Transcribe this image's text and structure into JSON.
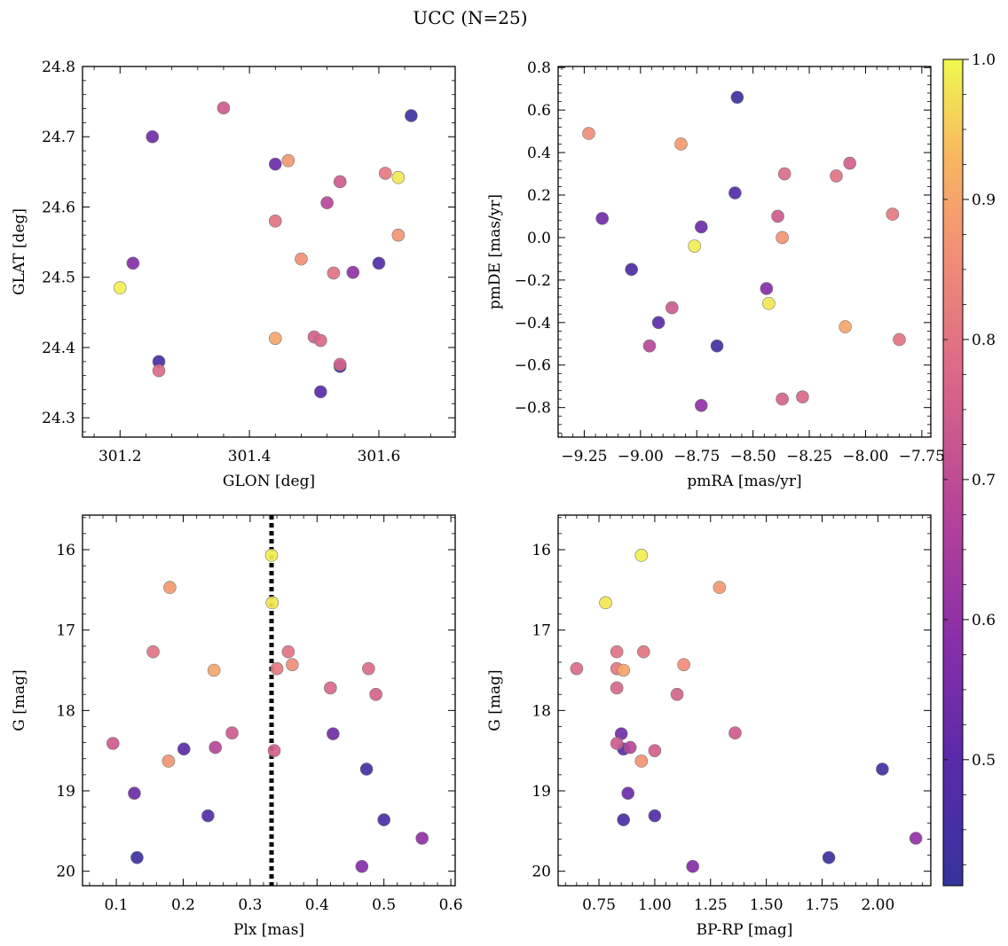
{
  "chart_data": {
    "type": "scatter",
    "title": "UCC (N=25)",
    "colorbar": {
      "colormap": "plasma",
      "range": [
        0.41,
        1.0
      ],
      "ticks": [
        "0.5",
        "0.6",
        "0.7",
        "0.8",
        "0.9",
        "1.0"
      ],
      "tick_values": [
        0.5,
        0.6,
        0.7,
        0.8,
        0.9,
        1.0
      ]
    },
    "stars": [
      {
        "glon": 301.2,
        "glat": 24.485,
        "pmra": -8.76,
        "pmde": -0.04,
        "plx": 0.332,
        "g": 16.07,
        "bprp": 0.94,
        "c": 0.99
      },
      {
        "glon": 301.63,
        "glat": 24.642,
        "pmra": -8.43,
        "pmde": -0.31,
        "plx": 0.333,
        "g": 16.66,
        "bprp": 0.78,
        "c": 0.98
      },
      {
        "glon": 301.46,
        "glat": 24.666,
        "pmra": -8.82,
        "pmde": 0.44,
        "plx": 0.18,
        "g": 16.47,
        "bprp": 1.29,
        "c": 0.88
      },
      {
        "glon": 301.44,
        "glat": 24.413,
        "pmra": -8.09,
        "pmde": -0.42,
        "plx": 0.246,
        "g": 17.5,
        "bprp": 0.86,
        "c": 0.9
      },
      {
        "glon": 301.48,
        "glat": 24.526,
        "pmra": -9.23,
        "pmde": 0.49,
        "plx": 0.363,
        "g": 17.43,
        "bprp": 1.13,
        "c": 0.86
      },
      {
        "glon": 301.63,
        "glat": 24.56,
        "pmra": -8.37,
        "pmde": 0.0,
        "plx": 0.178,
        "g": 18.63,
        "bprp": 0.94,
        "c": 0.87
      },
      {
        "glon": 301.61,
        "glat": 24.648,
        "pmra": -7.88,
        "pmde": 0.11,
        "plx": 0.34,
        "g": 17.48,
        "bprp": 0.83,
        "c": 0.81
      },
      {
        "glon": 301.53,
        "glat": 24.506,
        "pmra": -8.13,
        "pmde": 0.29,
        "plx": 0.357,
        "g": 17.27,
        "bprp": 0.95,
        "c": 0.8
      },
      {
        "glon": 301.44,
        "glat": 24.58,
        "pmra": -7.85,
        "pmde": -0.48,
        "plx": 0.155,
        "g": 17.27,
        "bprp": 0.83,
        "c": 0.8
      },
      {
        "glon": 301.26,
        "glat": 24.367,
        "pmra": -8.36,
        "pmde": 0.3,
        "plx": 0.477,
        "g": 17.48,
        "bprp": 0.65,
        "c": 0.78
      },
      {
        "glon": 301.51,
        "glat": 24.41,
        "pmra": -8.28,
        "pmde": -0.75,
        "plx": 0.42,
        "g": 17.72,
        "bprp": 0.83,
        "c": 0.77
      },
      {
        "glon": 301.54,
        "glat": 24.376,
        "pmra": -8.37,
        "pmde": -0.76,
        "plx": 0.488,
        "g": 17.8,
        "bprp": 1.1,
        "c": 0.76
      },
      {
        "glon": 301.5,
        "glat": 24.415,
        "pmra": -8.07,
        "pmde": 0.35,
        "plx": 0.336,
        "g": 18.5,
        "bprp": 1.0,
        "c": 0.75
      },
      {
        "glon": 301.36,
        "glat": 24.741,
        "pmra": -8.86,
        "pmde": -0.33,
        "plx": 0.095,
        "g": 18.41,
        "bprp": 0.83,
        "c": 0.74
      },
      {
        "glon": 301.54,
        "glat": 24.636,
        "pmra": -8.39,
        "pmde": 0.1,
        "plx": 0.273,
        "g": 18.28,
        "bprp": 1.36,
        "c": 0.74
      },
      {
        "glon": 301.52,
        "glat": 24.606,
        "pmra": -8.96,
        "pmde": -0.51,
        "plx": 0.248,
        "g": 18.46,
        "bprp": 0.89,
        "c": 0.68
      },
      {
        "glon": 301.56,
        "glat": 24.507,
        "pmra": -8.73,
        "pmde": -0.79,
        "plx": 0.557,
        "g": 19.59,
        "bprp": 2.17,
        "c": 0.6
      },
      {
        "glon": 301.22,
        "glat": 24.52,
        "pmra": -8.44,
        "pmde": -0.24,
        "plx": 0.467,
        "g": 19.94,
        "bprp": 1.17,
        "c": 0.58
      },
      {
        "glon": 301.25,
        "glat": 24.7,
        "pmra": -9.17,
        "pmde": 0.09,
        "plx": 0.424,
        "g": 18.29,
        "bprp": 0.85,
        "c": 0.54
      },
      {
        "glon": 301.44,
        "glat": 24.661,
        "pmra": -8.73,
        "pmde": 0.05,
        "plx": 0.127,
        "g": 19.03,
        "bprp": 0.88,
        "c": 0.53
      },
      {
        "glon": 301.51,
        "glat": 24.337,
        "pmra": -8.92,
        "pmde": -0.4,
        "plx": 0.201,
        "g": 18.48,
        "bprp": 0.86,
        "c": 0.5
      },
      {
        "glon": 301.6,
        "glat": 24.52,
        "pmra": -8.58,
        "pmde": 0.21,
        "plx": 0.237,
        "g": 19.31,
        "bprp": 1.0,
        "c": 0.48
      },
      {
        "glon": 301.26,
        "glat": 24.38,
        "pmra": -9.04,
        "pmde": -0.15,
        "plx": 0.5,
        "g": 19.36,
        "bprp": 0.86,
        "c": 0.46
      },
      {
        "glon": 301.54,
        "glat": 24.373,
        "pmra": -8.66,
        "pmde": -0.51,
        "plx": 0.474,
        "g": 18.73,
        "bprp": 2.02,
        "c": 0.44
      },
      {
        "glon": 301.65,
        "glat": 24.73,
        "pmra": -8.57,
        "pmde": 0.66,
        "plx": 0.131,
        "g": 19.83,
        "bprp": 1.78,
        "c": 0.43
      }
    ],
    "panels": [
      {
        "id": "glon-glat",
        "xkey": "glon",
        "ykey": "glat",
        "xlabel": "GLON [deg]",
        "ylabel": "GLAT [deg]",
        "xlim": [
          301.142,
          301.718
        ],
        "ylim": [
          24.2725,
          24.8
        ],
        "yinvert": false,
        "xticks": [
          301.2,
          301.4,
          301.6
        ],
        "xtick_labels": [
          "301.2",
          "301.4",
          "301.6"
        ],
        "yticks": [
          24.3,
          24.4,
          24.5,
          24.6,
          24.7,
          24.8
        ],
        "ytick_labels": [
          "24.3",
          "24.4",
          "24.5",
          "24.6",
          "24.7",
          "24.8"
        ]
      },
      {
        "id": "pmra-pmde",
        "xkey": "pmra",
        "ykey": "pmde",
        "xlabel": "pmRA [mas/yr]",
        "ylabel": "pmDE [mas/yr]",
        "xlim": [
          -9.366,
          -7.71
        ],
        "ylim": [
          -0.939,
          0.805
        ],
        "yinvert": false,
        "xticks": [
          -9.25,
          -9.0,
          -8.75,
          -8.5,
          -8.25,
          -8.0,
          -7.75
        ],
        "xtick_labels": [
          "−9.25",
          "−9.00",
          "−8.75",
          "−8.50",
          "−8.25",
          "−8.00",
          "−7.75"
        ],
        "yticks": [
          -0.8,
          -0.6,
          -0.4,
          -0.2,
          0.0,
          0.2,
          0.4,
          0.6,
          0.8
        ],
        "ytick_labels": [
          "−0.8",
          "−0.6",
          "−0.4",
          "−0.2",
          "0.0",
          "0.2",
          "0.4",
          "0.6",
          "0.8"
        ]
      },
      {
        "id": "plx-g",
        "xkey": "plx",
        "ykey": "g",
        "xlabel": "Plx [mas]",
        "ylabel": "G [mag]",
        "xlim": [
          0.0495,
          0.6065
        ],
        "ylim": [
          15.57,
          20.18
        ],
        "yinvert": true,
        "vline": 0.332,
        "xticks": [
          0.1,
          0.2,
          0.3,
          0.4,
          0.5,
          0.6
        ],
        "xtick_labels": [
          "0.1",
          "0.2",
          "0.3",
          "0.4",
          "0.5",
          "0.6"
        ],
        "yticks": [
          16,
          17,
          18,
          19,
          20
        ],
        "ytick_labels": [
          "16",
          "17",
          "18",
          "19",
          "20"
        ]
      },
      {
        "id": "bprp-g",
        "xkey": "bprp",
        "ykey": "g",
        "xlabel": "BP-RP [mag]",
        "ylabel": "G [mag]",
        "xlim": [
          0.567,
          2.237
        ],
        "ylim": [
          15.57,
          20.18
        ],
        "yinvert": true,
        "xticks": [
          0.75,
          1.0,
          1.25,
          1.5,
          1.75,
          2.0
        ],
        "xtick_labels": [
          "0.75",
          "1.00",
          "1.25",
          "1.50",
          "1.75",
          "2.00"
        ],
        "yticks": [
          16,
          17,
          18,
          19,
          20
        ],
        "ytick_labels": [
          "16",
          "17",
          "18",
          "19",
          "20"
        ]
      }
    ]
  }
}
